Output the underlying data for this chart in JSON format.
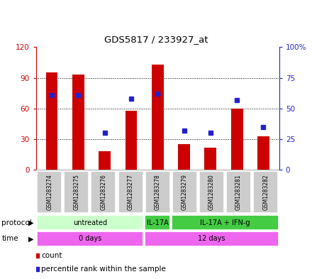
{
  "title": "GDS5817 / 233927_at",
  "samples": [
    "GSM1283274",
    "GSM1283275",
    "GSM1283276",
    "GSM1283277",
    "GSM1283278",
    "GSM1283279",
    "GSM1283280",
    "GSM1283281",
    "GSM1283282"
  ],
  "counts": [
    95,
    93,
    18,
    58,
    103,
    25,
    22,
    60,
    33
  ],
  "percentile_ranks": [
    61,
    61,
    30,
    58,
    62,
    32,
    30,
    57,
    35
  ],
  "ylim_left": [
    0,
    120
  ],
  "ylim_right": [
    0,
    100
  ],
  "yticks_left": [
    0,
    30,
    60,
    90,
    120
  ],
  "yticks_right": [
    0,
    25,
    50,
    75,
    100
  ],
  "ytick_labels_right": [
    "0",
    "25",
    "50",
    "75",
    "100%"
  ],
  "bar_color": "#cc0000",
  "dot_color": "#2222cc",
  "protocol_groups": [
    {
      "label": "untreated",
      "start": 0,
      "end": 3,
      "color": "#ccffcc"
    },
    {
      "label": "IL-17A",
      "start": 4,
      "end": 4,
      "color": "#44cc44"
    },
    {
      "label": "IL-17A + IFN-g",
      "start": 5,
      "end": 8,
      "color": "#44cc44"
    }
  ],
  "time_groups": [
    {
      "label": "0 days",
      "start": 0,
      "end": 3,
      "color": "#ee66ee"
    },
    {
      "label": "12 days",
      "start": 4,
      "end": 8,
      "color": "#ee66ee"
    }
  ],
  "protocol_label": "protocol",
  "time_label": "time",
  "legend_count_label": "count",
  "legend_percentile_label": "percentile rank within the sample",
  "tick_color_left": "#cc0000",
  "tick_color_right": "#2222cc",
  "sample_box_color": "#cccccc",
  "fig_width": 4.4,
  "fig_height": 3.93,
  "dpi": 100
}
